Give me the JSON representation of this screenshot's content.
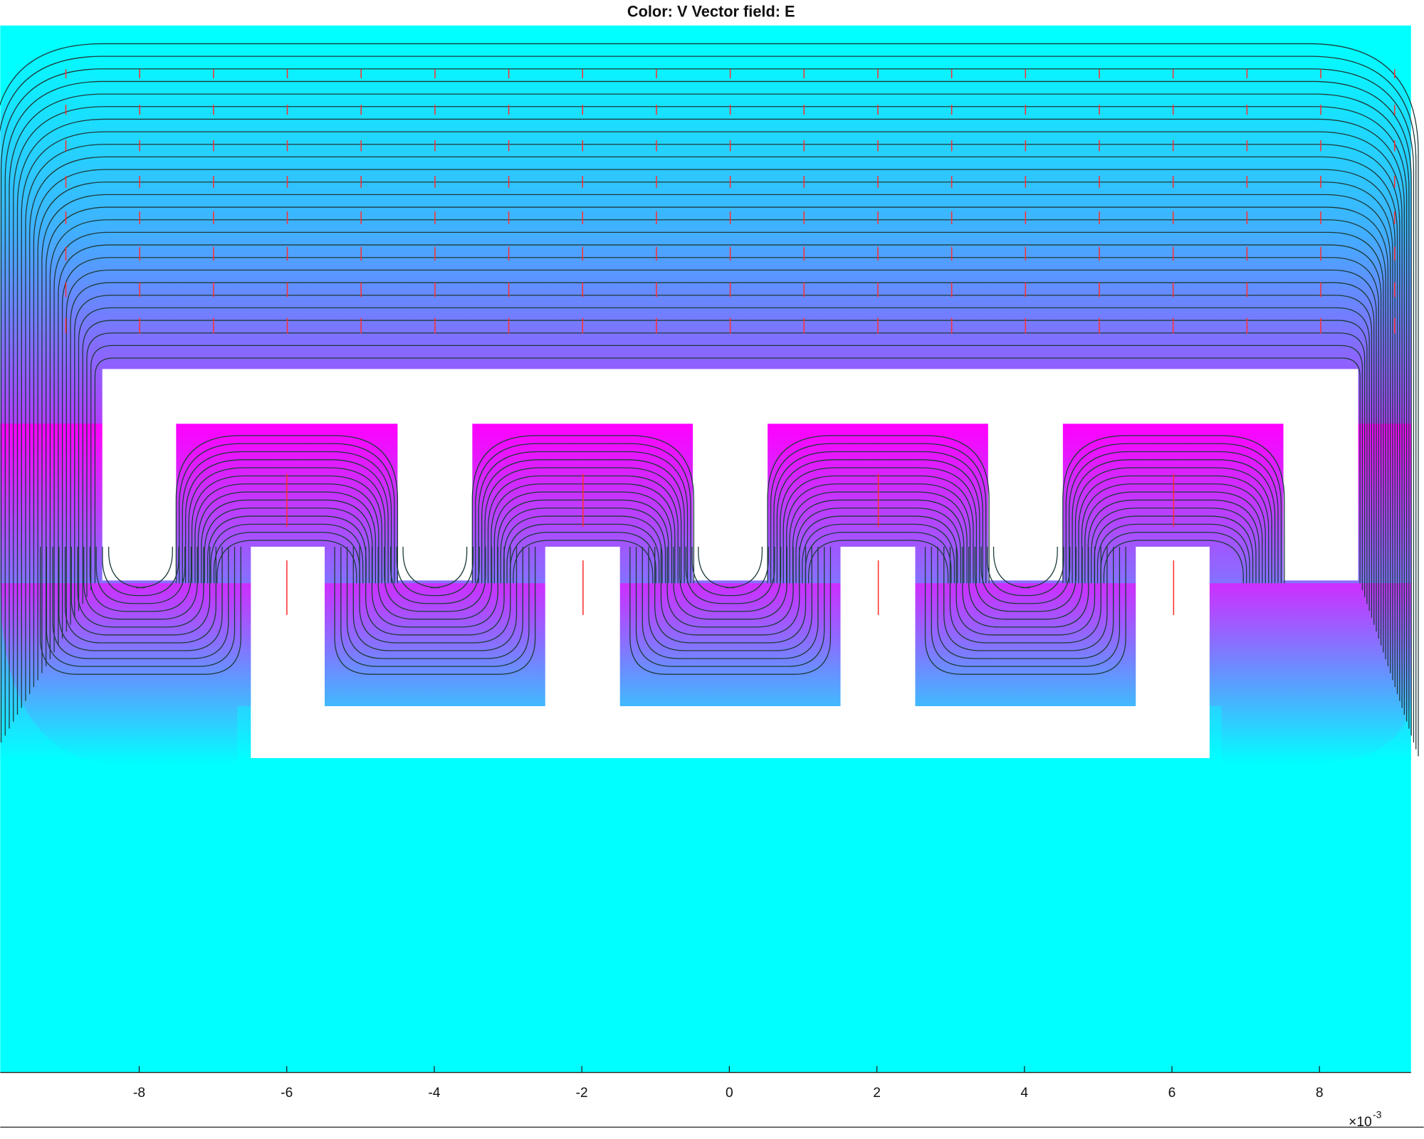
{
  "chart_data": {
    "type": "field",
    "title": "Color: V  Vector field: E",
    "xlim": [
      -9.884,
      9.241
    ],
    "xticks": [
      -8,
      -6,
      -4,
      -2,
      0,
      2,
      4,
      6,
      8
    ],
    "x_multiplier": {
      "base": "×10",
      "exponent": "-3"
    }
  }
}
